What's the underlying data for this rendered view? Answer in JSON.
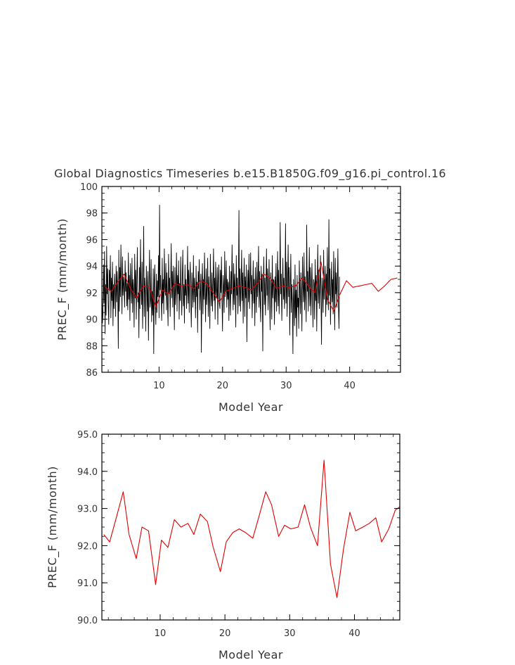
{
  "title": "Global Diagnostics Timeseries b.e15.B1850G.f09_g16.pi_control.16",
  "chart_data": [
    {
      "type": "line",
      "ylabel": "PREC_F (mm/month)",
      "xlabel": "Model Year",
      "xlim": [
        1,
        48
      ],
      "ylim": [
        86,
        100
      ],
      "xticks": [
        10,
        20,
        30,
        40
      ],
      "yticks": [
        86,
        88,
        90,
        92,
        94,
        96,
        98,
        100
      ],
      "colors": {
        "monthly": "#000000",
        "annual": "#e00000"
      },
      "series": [
        {
          "name": "monthly",
          "x_start": 1.0,
          "x_step": 0.0833,
          "values": [
            92.3,
            89.7,
            90.4,
            94.1,
            91.2,
            95.1,
            88.9,
            92.6,
            90.3,
            95.5,
            91.9,
            93.8,
            91.1,
            89.6,
            93.7,
            92.2,
            94.8,
            90.1,
            93.1,
            91.4,
            94.3,
            89.5,
            92.6,
            90.8,
            93.4,
            92.4,
            90.2,
            94.0,
            91.3,
            93.6,
            92.0,
            87.8,
            95.2,
            90.6,
            93.9,
            91.7,
            95.6,
            92.9,
            90.4,
            94.7,
            91.8,
            93.2,
            92.5,
            90.9,
            94.4,
            92.1,
            93.5,
            91.0,
            92.7,
            90.7,
            95.0,
            91.5,
            93.3,
            89.9,
            94.2,
            92.3,
            91.2,
            94.6,
            90.5,
            93.0,
            92.2,
            89.4,
            94.9,
            91.6,
            93.7,
            90.0,
            92.8,
            95.4,
            91.3,
            92.0,
            88.6,
            93.9,
            90.8,
            96.0,
            92.4,
            91.1,
            94.3,
            89.3,
            92.6,
            97.0,
            90.2,
            93.1,
            91.9,
            89.1,
            94.0,
            92.5,
            90.6,
            93.6,
            88.4,
            92.3,
            95.2,
            90.9,
            91.4,
            94.5,
            89.8,
            92.1,
            90.3,
            93.8,
            87.4,
            92.7,
            94.1,
            91.0,
            89.6,
            93.4,
            90.5,
            92.9,
            91.7,
            94.8,
            90.1,
            98.6,
            92.2,
            93.3,
            91.5,
            89.9,
            94.6,
            91.2,
            93.0,
            90.4,
            95.3,
            92.4,
            91.8,
            94.2,
            90.7,
            93.5,
            91.3,
            89.5,
            94.9,
            92.0,
            93.1,
            90.2,
            92.8,
            95.7,
            91.6,
            93.6,
            90.9,
            94.0,
            92.3,
            89.2,
            93.9,
            91.1,
            92.5,
            95.0,
            90.6,
            93.3,
            91.9,
            94.4,
            90.0,
            92.7,
            91.4,
            94.7,
            92.1,
            90.3,
            93.2,
            95.2,
            91.0,
            92.6,
            89.7,
            94.1,
            91.8,
            93.0,
            90.8,
            92.4,
            95.5,
            91.2,
            93.7,
            90.5,
            92.9,
            94.3,
            91.6,
            89.4,
            93.5,
            92.2,
            90.9,
            94.8,
            91.3,
            93.1,
            92.0,
            90.1,
            94.0,
            91.7,
            92.8,
            89.0,
            93.6,
            92.3,
            94.5,
            90.7,
            91.9,
            93.4,
            87.5,
            92.6,
            94.2,
            90.4,
            93.0,
            91.5,
            95.0,
            92.1,
            89.8,
            93.8,
            91.1,
            92.5,
            94.6,
            90.2,
            93.2,
            91.8,
            89.3,
            94.9,
            92.4,
            91.0,
            93.5,
            90.6,
            92.7,
            95.3,
            91.4,
            93.1,
            90.0,
            94.3,
            92.2,
            91.6,
            93.9,
            89.6,
            92.9,
            94.1,
            91.2,
            90.8,
            93.7,
            92.0,
            94.7,
            91.3,
            89.1,
            93.3,
            92.6,
            90.5,
            95.1,
            91.7,
            92.3,
            94.4,
            90.9,
            93.0,
            91.5,
            92.8,
            89.9,
            94.0,
            92.1,
            90.3,
            93.6,
            91.9,
            95.6,
            92.5,
            90.7,
            94.2,
            91.1,
            93.4,
            92.2,
            89.4,
            94.8,
            91.8,
            93.1,
            90.4,
            92.7,
            98.2,
            91.0,
            93.8,
            90.6,
            92.4,
            95.2,
            91.4,
            93.5,
            89.7,
            92.9,
            94.6,
            90.2,
            93.2,
            91.6,
            94.1,
            88.3,
            92.0,
            93.7,
            91.3,
            94.9,
            90.8,
            92.6,
            95.0,
            91.9,
            93.3,
            90.1,
            92.3,
            94.4,
            91.2,
            93.0,
            89.5,
            93.9,
            92.5,
            90.5,
            94.3,
            91.7,
            92.8,
            95.5,
            90.9,
            93.6,
            91.5,
            89.8,
            94.0,
            92.1,
            93.4,
            87.6,
            92.7,
            94.7,
            91.1,
            93.1,
            90.3,
            92.4,
            95.3,
            91.8,
            93.8,
            90.7,
            92.2,
            94.5,
            91.4,
            89.2,
            93.5,
            92.6,
            90.0,
            94.8,
            91.6,
            93.0,
            92.9,
            89.6,
            93.2,
            91.3,
            94.2,
            90.6,
            92.5,
            95.1,
            91.0,
            93.7,
            90.4,
            92.8,
            97.3,
            91.9,
            93.4,
            89.9,
            92.3,
            94.6,
            91.5,
            93.1,
            90.8,
            92.0,
            97.2,
            91.2,
            94.3,
            90.2,
            92.7,
            95.6,
            91.7,
            93.9,
            88.8,
            92.4,
            94.9,
            90.5,
            92.6,
            91.1,
            87.4,
            93.0,
            91.4,
            89.5,
            94.1,
            90.1,
            92.2,
            88.7,
            93.3,
            90.9,
            91.6,
            89.3,
            94.4,
            92.0,
            90.4,
            93.5,
            91.8,
            89.1,
            94.7,
            92.5,
            91.3,
            95.0,
            90.7,
            93.2,
            91.9,
            89.8,
            97.1,
            92.1,
            93.6,
            90.6,
            92.8,
            95.4,
            91.0,
            93.9,
            90.3,
            92.3,
            94.2,
            91.6,
            89.4,
            93.0,
            92.7,
            90.0,
            94.5,
            91.4,
            93.3,
            89.1,
            92.9,
            95.6,
            91.2,
            93.7,
            90.8,
            92.4,
            94.8,
            91.7,
            88.1,
            93.1,
            92.2,
            90.5,
            95.2,
            91.5,
            92.6,
            94.0,
            90.2,
            93.4,
            91.1,
            95.4,
            92.0,
            90.7,
            97.5,
            91.8,
            93.8,
            89.6,
            92.5,
            94.3,
            91.3,
            93.0,
            90.4,
            95.1,
            92.3,
            89.2,
            94.6,
            91.9,
            93.5,
            90.9,
            92.8,
            95.3,
            91.0,
            89.3,
            93.2
          ]
        },
        {
          "name": "annual",
          "x": [
            1.5,
            2.5,
            3.5,
            4.5,
            5.5,
            6.5,
            7.5,
            8.5,
            9.5,
            10.5,
            11.5,
            12.5,
            13.5,
            14.5,
            15.5,
            16.5,
            17.5,
            18.5,
            19.5,
            20.5,
            21.5,
            22.5,
            23.5,
            24.5,
            25.5,
            26.5,
            27.5,
            28.5,
            29.5,
            30.5,
            31.5,
            32.5,
            33.5,
            34.5,
            35.5,
            36.5,
            37.5,
            38.5,
            39.5,
            40.5,
            41.5,
            42.5,
            43.5,
            44.5,
            45.5,
            46.5,
            47.5
          ],
          "values": [
            92.4,
            92.1,
            92.8,
            93.4,
            92.3,
            91.6,
            92.5,
            92.4,
            90.9,
            92.2,
            91.9,
            92.7,
            92.5,
            92.6,
            92.3,
            92.9,
            92.7,
            92.0,
            91.3,
            92.1,
            92.3,
            92.5,
            92.4,
            92.2,
            92.7,
            93.4,
            93.1,
            92.3,
            92.5,
            92.4,
            92.5,
            93.1,
            92.5,
            92.0,
            94.3,
            91.5,
            90.6,
            91.9,
            92.9,
            92.4,
            92.5,
            92.6,
            92.7,
            92.1,
            92.5,
            93.0,
            93.1
          ]
        }
      ]
    },
    {
      "type": "line",
      "ylabel": "PREC_F (mm/month)",
      "xlabel": "Model Year",
      "xlim": [
        1,
        47
      ],
      "ylim": [
        90,
        95
      ],
      "xticks": [
        10,
        20,
        30,
        40
      ],
      "yticks": [
        90,
        91,
        92,
        93,
        94,
        95
      ],
      "ytick_labels": [
        "90.0",
        "91.0",
        "92.0",
        "93.0",
        "94.0",
        "95.0"
      ],
      "colors": {
        "annual": "#e00000"
      },
      "series": [
        {
          "name": "annual",
          "x": [
            1.3,
            2.2,
            3.3,
            4.3,
            5.2,
            6.3,
            7.2,
            8.2,
            9.3,
            10.2,
            11.2,
            12.2,
            13.2,
            14.3,
            15.2,
            16.2,
            17.3,
            18.2,
            19.3,
            20.2,
            21.2,
            22.2,
            23.2,
            24.3,
            25.2,
            26.3,
            27.2,
            28.3,
            29.2,
            30.2,
            31.3,
            32.3,
            33.2,
            34.3,
            35.3,
            36.3,
            37.3,
            38.3,
            39.3,
            40.2,
            41.3,
            42.3,
            43.3,
            44.2,
            45.3,
            46.3,
            47.0
          ],
          "values": [
            92.3,
            92.1,
            92.8,
            93.45,
            92.3,
            91.65,
            92.5,
            92.4,
            90.95,
            92.15,
            91.95,
            92.7,
            92.5,
            92.6,
            92.3,
            92.85,
            92.65,
            91.95,
            91.3,
            92.1,
            92.35,
            92.45,
            92.35,
            92.2,
            92.75,
            93.45,
            93.1,
            92.25,
            92.55,
            92.45,
            92.5,
            93.1,
            92.5,
            92.0,
            94.3,
            91.5,
            90.6,
            91.9,
            92.9,
            92.4,
            92.5,
            92.6,
            92.75,
            92.1,
            92.45,
            92.95,
            93.05
          ]
        }
      ]
    }
  ]
}
